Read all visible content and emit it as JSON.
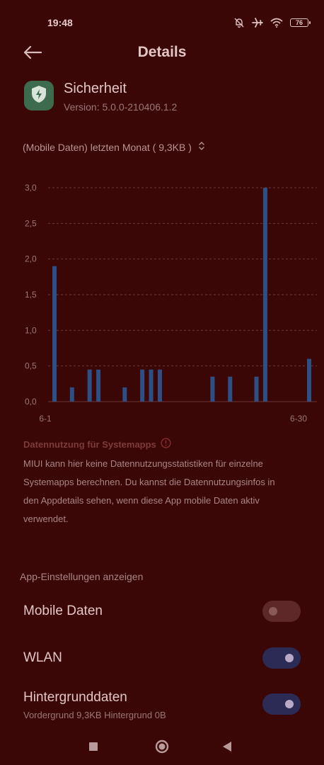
{
  "status_bar": {
    "time": "19:48",
    "battery": "76",
    "icons": [
      "mute-bell-icon",
      "airplane-icon",
      "wifi-icon",
      "battery-icon"
    ]
  },
  "header": {
    "title": "Details",
    "back_icon": "back-arrow-icon"
  },
  "app": {
    "name": "Sicherheit",
    "version": "Version: 5.0.0-210406.1.2",
    "icon": "shield-bolt-icon",
    "icon_color": "#3d6b4e"
  },
  "period_selector": {
    "label": "(Mobile Daten) letzten Monat ( 9,3KB )",
    "icon": "up-down-chevron-icon"
  },
  "chart_data": {
    "type": "bar",
    "x_start_label": "6-1",
    "x_end_label": "6-30",
    "days": [
      1,
      2,
      3,
      4,
      5,
      6,
      7,
      8,
      9,
      10,
      11,
      12,
      13,
      14,
      15,
      16,
      17,
      18,
      19,
      20,
      21,
      22,
      23,
      24,
      25,
      26,
      27,
      28,
      29,
      30
    ],
    "values": [
      1.9,
      0,
      0.2,
      0,
      0.45,
      0.45,
      0,
      0,
      0.2,
      0,
      0.45,
      0.45,
      0.45,
      0,
      0,
      0,
      0,
      0,
      0.35,
      0,
      0.35,
      0,
      0,
      0.35,
      3.0,
      0,
      0,
      0,
      0,
      0.6
    ],
    "yticks": [
      "0,0",
      "0,5",
      "1,0",
      "1,5",
      "2,0",
      "2,5",
      "3,0"
    ],
    "ylim": [
      0,
      3.0
    ],
    "bar_color": "#2c4f86",
    "grid": true
  },
  "system_info": {
    "heading": "Datennutzung für Systemapps",
    "heading_icon": "info-circle-icon",
    "text": "MIUI kann hier keine Datennutzungsstatistiken für einzelne Systemapps berechnen. Du kannst die Datennutzungsinfos in den Appdetails sehen, wenn diese App mobile Daten aktiv verwendet."
  },
  "settings": {
    "heading": "App-Einstellungen anzeigen",
    "items": [
      {
        "label": "Mobile Daten",
        "enabled": false
      },
      {
        "label": "WLAN",
        "enabled": true
      },
      {
        "label": "Hintergrunddaten",
        "sublabel": "Vordergrund 9,3KB  Hintergrund 0B",
        "enabled": true
      }
    ]
  },
  "nav_bar": {
    "icons": [
      "recents-square-icon",
      "home-circle-icon",
      "back-triangle-icon"
    ]
  }
}
